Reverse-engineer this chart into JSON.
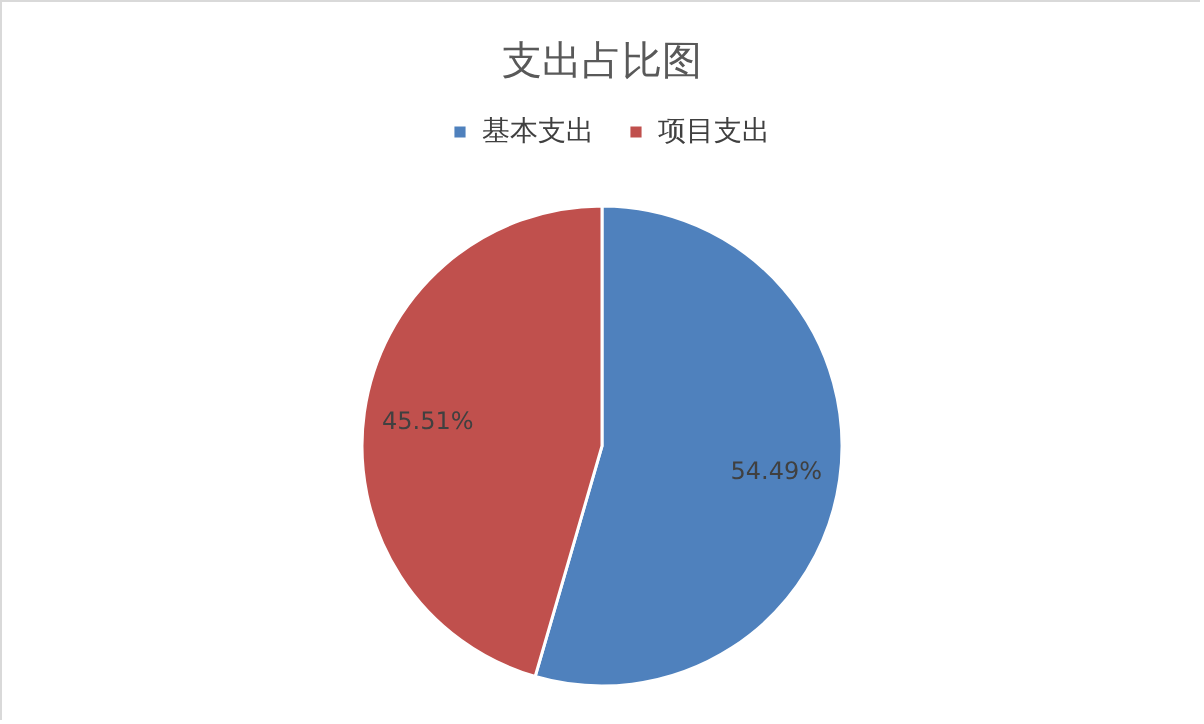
{
  "chart_data": {
    "type": "pie",
    "title": "支出占比图",
    "categories": [
      "基本支出",
      "项目支出"
    ],
    "values": [
      54.49,
      45.51
    ],
    "colors": [
      "#4f81bd",
      "#c0504d"
    ],
    "value_labels": [
      "54.49%",
      "45.51%"
    ],
    "legend": "top"
  }
}
